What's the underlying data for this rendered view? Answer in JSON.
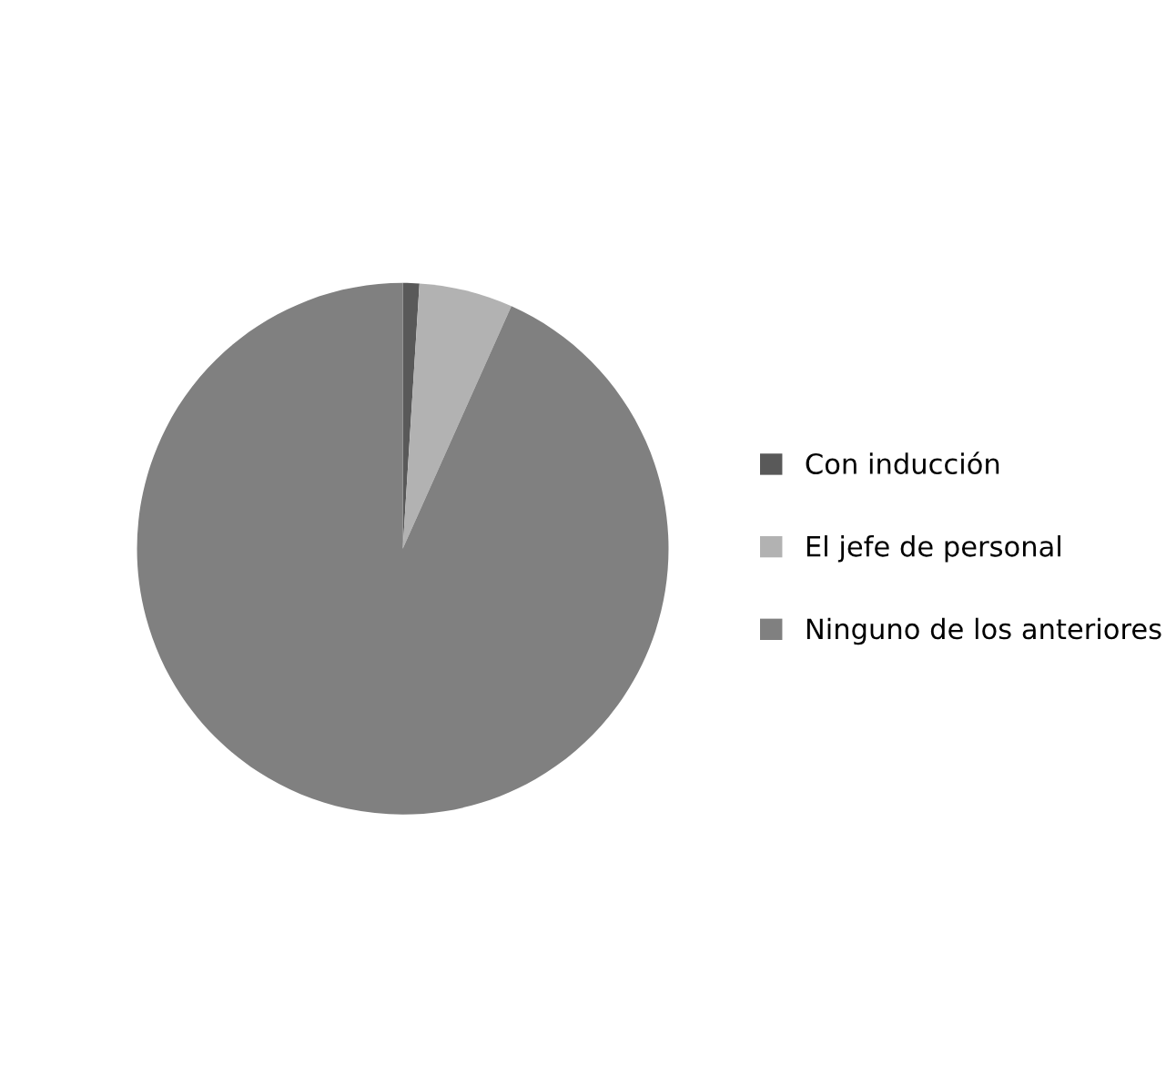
{
  "chart_data": {
    "type": "pie",
    "categories": [
      "Con inducción",
      "El jefe de personal",
      "Ninguno de los anteriores"
    ],
    "values": [
      1,
      5.7,
      93.3
    ],
    "colors": [
      "#595959",
      "#b2b2b2",
      "#808080"
    ],
    "legend": "right"
  }
}
